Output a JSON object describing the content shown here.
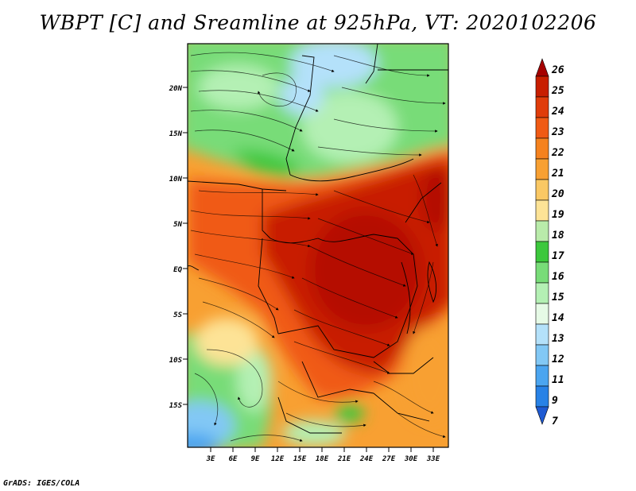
{
  "title": "WBPT [C] and Sreamline at 925hPa, VT: 2020102206",
  "map": {
    "lat_labels": [
      "20N",
      "15N",
      "10N",
      "5N",
      "EQ",
      "5S",
      "10S",
      "15S"
    ],
    "lon_labels": [
      "3E",
      "6E",
      "9E",
      "12E",
      "15E",
      "18E",
      "21E",
      "24E",
      "27E",
      "30E",
      "33E"
    ]
  },
  "colorbar": {
    "levels": [
      "26",
      "25",
      "24",
      "23",
      "22",
      "21",
      "20",
      "19",
      "18",
      "17",
      "16",
      "15",
      "14",
      "13",
      "12",
      "11",
      "9",
      "7"
    ],
    "colors": [
      "#a50000",
      "#c81e00",
      "#e03c0a",
      "#f05a14",
      "#f5821e",
      "#f8a032",
      "#fac864",
      "#fde396",
      "#b9ebaa",
      "#3cc83c",
      "#78dc78",
      "#b4f0b4",
      "#e6fae6",
      "#b4e1fa",
      "#82c8f5",
      "#4ba5f0",
      "#2882e6",
      "#1e5ad2"
    ]
  },
  "credit": "GrADS: IGES/COLA"
}
